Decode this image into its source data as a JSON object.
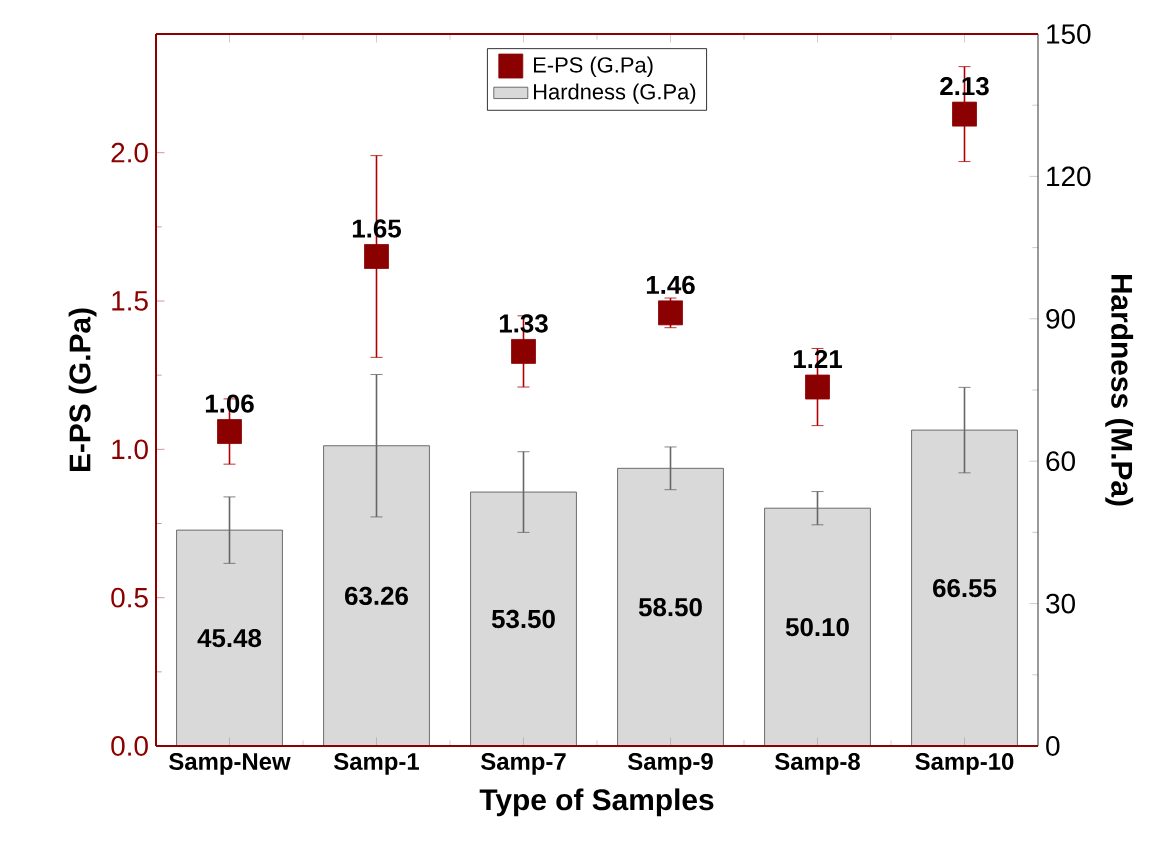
{
  "chart_data": {
    "type": "bar",
    "xlabel": "Type of Samples",
    "ylabel": "E-PS (G.Pa)",
    "y2label": "Hardness (M.Pa)",
    "categories": [
      "Samp-New",
      "Samp-1",
      "Samp-7",
      "Samp-9",
      "Samp-8",
      "Samp-10"
    ],
    "series": [
      {
        "name": "E-PS (G.Pa)",
        "type": "scatter",
        "color": "#8b0000",
        "values": [
          1.06,
          1.65,
          1.33,
          1.46,
          1.21,
          2.13
        ],
        "errors": [
          0.11,
          0.34,
          0.12,
          0.05,
          0.13,
          0.16
        ],
        "value_labels": [
          "1.06",
          "1.65",
          "1.33",
          "1.46",
          "1.21",
          "2.13"
        ]
      },
      {
        "name": "Hardness (G.Pa)",
        "type": "bar",
        "axis": "y2",
        "color": "#d9d9d9",
        "values": [
          45.48,
          63.26,
          53.5,
          58.5,
          50.1,
          66.55
        ],
        "errors": [
          7,
          15,
          8.5,
          4.5,
          3.5,
          9
        ],
        "value_labels": [
          "45.48",
          "63.26",
          "53.50",
          "58.50",
          "50.10",
          "66.55"
        ]
      }
    ],
    "ylim": [
      0,
      2.4
    ],
    "yticks": [
      {
        "value": 0,
        "label": "0.0"
      },
      {
        "value": 0.5,
        "label": "0.5"
      },
      {
        "value": 1,
        "label": "1.0"
      },
      {
        "value": 1.5,
        "label": "1.5"
      },
      {
        "value": 2,
        "label": "2.0"
      }
    ],
    "y2lim": [
      0,
      150
    ],
    "y2ticks": [
      0,
      30,
      60,
      90,
      120,
      150
    ],
    "legend": "top",
    "marker": "square"
  }
}
